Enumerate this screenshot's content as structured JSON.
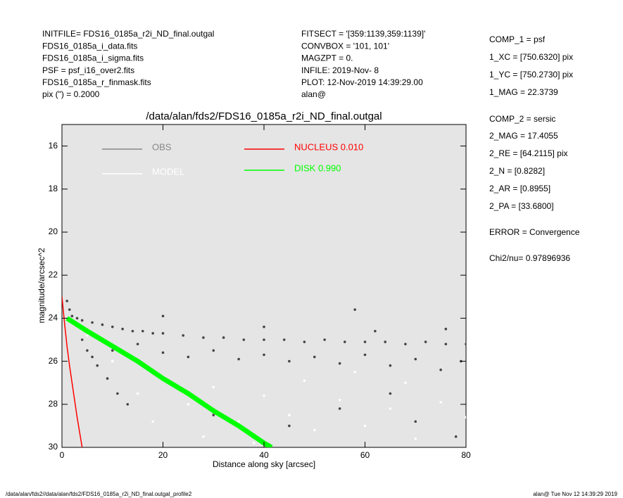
{
  "header": {
    "left": [
      "INITFILE= FDS16_0185a_r2i_ND_final.outgal",
      "FDS16_0185a_i_data.fits",
      "FDS16_0185a_i_sigma.fits",
      "PSF    = psf_i16_over2.fits",
      "FDS16_0185a_r_finmask.fits",
      "pix (\") =  0.2000"
    ],
    "middle": [
      "FITSECT = '[359:1139,359:1139]'",
      "CONVBOX = '101, 101'",
      "MAGZPT =              0.",
      "INFILE: 2019-Nov- 8",
      "PLOT: 12-Nov-2019 14:39:29.00",
      "alan@"
    ],
    "right": [
      "COMP_1  = psf",
      "1_XC    = [750.6320] pix",
      "1_YC    = [750.2730] pix",
      "1_MAG   = 22.3739",
      "COMP_2  = sersic",
      "2_MAG   = 17.4055",
      "2_RE    = [64.2115] pix",
      "2_N     = [0.8282]",
      "2_AR    = [0.8955]",
      "2_PA    = [33.6800]",
      "ERROR   = Convergence",
      "Chi2/nu=       0.97896936"
    ]
  },
  "footer": {
    "left": "/data/alan/fds2//data/alan/fds2/FDS16_0185a_r2i_ND_final.outgal_profile2",
    "right": "alan@  Tue Nov 12 14:39:29 2019"
  },
  "chart_data": {
    "type": "scatter",
    "title": "/data/alan/fds2/FDS16_0185a_r2i_ND_final.outgal",
    "x_label": "Distance along sky [arcsec]",
    "y_label": "magnitude/arcsec^2",
    "xlim": [
      0,
      80
    ],
    "xticks": [
      0,
      20,
      40,
      60,
      80
    ],
    "ylim": [
      30,
      15
    ],
    "yticks": [
      16,
      18,
      20,
      22,
      24,
      26,
      28,
      30
    ],
    "series": [
      {
        "name": "OBS",
        "color": "#444444",
        "mode": "markers",
        "x": [
          1,
          1.5,
          2,
          3,
          4,
          6,
          8,
          10,
          12,
          14,
          16,
          18,
          20,
          24,
          28,
          32,
          36,
          40,
          44,
          48,
          52,
          56,
          60,
          64,
          68,
          72,
          76,
          80,
          5,
          7,
          9,
          11,
          13,
          4,
          6,
          10,
          15,
          20,
          25,
          30,
          35,
          40,
          45,
          50,
          55,
          60,
          65,
          70,
          75,
          79,
          30,
          45,
          55,
          65,
          70,
          78,
          58,
          20,
          40,
          62,
          76
        ],
        "values": [
          23.2,
          23.6,
          23.9,
          24.0,
          24.1,
          24.2,
          24.3,
          24.4,
          24.5,
          24.6,
          24.6,
          24.7,
          24.7,
          24.8,
          24.9,
          24.9,
          25.0,
          25.0,
          25.0,
          25.1,
          25.0,
          25.1,
          25.1,
          25.1,
          25.2,
          25.1,
          25.2,
          25.2,
          25.5,
          26.2,
          26.8,
          27.5,
          28.0,
          25.0,
          25.8,
          25.5,
          25.2,
          25.6,
          25.8,
          25.5,
          25.9,
          25.7,
          26.0,
          25.8,
          26.1,
          25.7,
          26.2,
          25.9,
          26.4,
          26.0,
          28.5,
          29.0,
          28.2,
          27.5,
          28.8,
          29.5,
          23.6,
          23.9,
          24.4,
          24.6,
          24.5
        ]
      },
      {
        "name": "MODEL",
        "color": "#ffffff",
        "mode": "markers",
        "x": [
          5,
          10,
          15,
          20,
          25,
          30,
          35,
          40,
          45,
          50,
          55,
          60,
          65,
          70,
          75,
          80,
          38,
          48,
          58,
          68,
          28,
          18
        ],
        "values": [
          24.8,
          26.0,
          27.5,
          26.8,
          28.0,
          27.2,
          28.8,
          27.6,
          28.5,
          29.2,
          27.8,
          29.0,
          28.2,
          29.6,
          27.9,
          28.6,
          29.8,
          26.9,
          26.5,
          27.0,
          29.5,
          28.8
        ]
      },
      {
        "name": "NUCLEUS  0.010",
        "color": "#ff0000",
        "mode": "lines",
        "x": [
          0,
          0.5,
          1,
          1.5,
          2,
          2.5,
          3,
          3.5,
          4
        ],
        "values": [
          23,
          24.2,
          25.3,
          26.2,
          27,
          27.8,
          28.6,
          29.3,
          30
        ]
      },
      {
        "name": "DISK  0.990",
        "color": "#00ff00",
        "mode": "lines",
        "x": [
          1,
          5,
          10,
          15,
          20,
          25,
          30,
          35,
          40,
          41.5
        ],
        "values": [
          24,
          24.6,
          25.3,
          26.0,
          26.8,
          27.5,
          28.3,
          29.0,
          29.8,
          30
        ]
      }
    ]
  }
}
